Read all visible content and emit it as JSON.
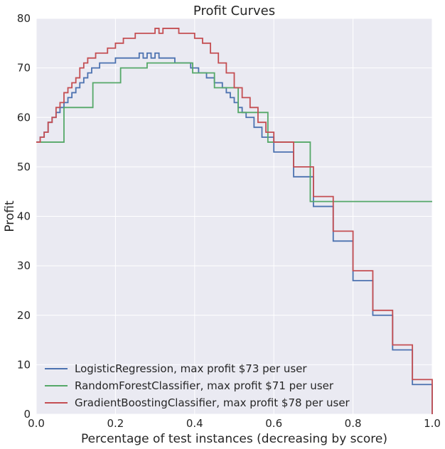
{
  "chart_data": {
    "type": "line",
    "title": "Profit Curves",
    "xlabel": "Percentage of test instances (decreasing by score)",
    "ylabel": "Profit",
    "xlim": [
      0,
      1
    ],
    "ylim": [
      0,
      80
    ],
    "xticks": [
      0.0,
      0.2,
      0.4,
      0.6,
      0.8,
      1.0
    ],
    "xtick_labels": [
      "0.0",
      "0.2",
      "0.4",
      "0.6",
      "0.8",
      "1.0"
    ],
    "yticks": [
      0,
      10,
      20,
      30,
      40,
      50,
      60,
      70,
      80
    ],
    "ytick_labels": [
      "0",
      "10",
      "20",
      "30",
      "40",
      "50",
      "60",
      "70",
      "80"
    ],
    "grid": true,
    "legend_position": "lower-left",
    "background_color": "#EAEAF2",
    "series": [
      {
        "name": "LogisticRegression, max profit $73 per user",
        "color": "#4C72B0",
        "step": true,
        "points": [
          [
            0.0,
            55
          ],
          [
            0.01,
            56
          ],
          [
            0.02,
            57
          ],
          [
            0.03,
            59
          ],
          [
            0.04,
            60
          ],
          [
            0.05,
            61
          ],
          [
            0.06,
            62
          ],
          [
            0.07,
            63
          ],
          [
            0.08,
            64
          ],
          [
            0.09,
            65
          ],
          [
            0.1,
            66
          ],
          [
            0.11,
            67
          ],
          [
            0.12,
            68
          ],
          [
            0.13,
            69
          ],
          [
            0.14,
            70
          ],
          [
            0.15,
            70
          ],
          [
            0.16,
            71
          ],
          [
            0.18,
            71
          ],
          [
            0.2,
            72
          ],
          [
            0.25,
            72
          ],
          [
            0.26,
            73
          ],
          [
            0.27,
            72
          ],
          [
            0.28,
            73
          ],
          [
            0.29,
            72
          ],
          [
            0.3,
            73
          ],
          [
            0.31,
            72
          ],
          [
            0.34,
            72
          ],
          [
            0.35,
            71
          ],
          [
            0.38,
            71
          ],
          [
            0.39,
            70
          ],
          [
            0.41,
            69
          ],
          [
            0.43,
            68
          ],
          [
            0.45,
            67
          ],
          [
            0.47,
            66
          ],
          [
            0.48,
            65
          ],
          [
            0.49,
            64
          ],
          [
            0.5,
            63
          ],
          [
            0.51,
            62
          ],
          [
            0.52,
            61
          ],
          [
            0.53,
            60
          ],
          [
            0.55,
            58
          ],
          [
            0.57,
            56
          ],
          [
            0.6,
            53
          ],
          [
            0.65,
            48
          ],
          [
            0.7,
            42
          ],
          [
            0.75,
            35
          ],
          [
            0.8,
            27
          ],
          [
            0.85,
            20
          ],
          [
            0.9,
            13
          ],
          [
            0.95,
            6
          ],
          [
            1.0,
            0
          ]
        ]
      },
      {
        "name": "RandomForestClassifier, max profit $71 per user",
        "color": "#55A868",
        "step": true,
        "points": [
          [
            0.0,
            55
          ],
          [
            0.07,
            55
          ],
          [
            0.07,
            62
          ],
          [
            0.143,
            62
          ],
          [
            0.143,
            67
          ],
          [
            0.213,
            67
          ],
          [
            0.213,
            70
          ],
          [
            0.28,
            70
          ],
          [
            0.28,
            71
          ],
          [
            0.395,
            71
          ],
          [
            0.395,
            69
          ],
          [
            0.45,
            69
          ],
          [
            0.45,
            66
          ],
          [
            0.51,
            66
          ],
          [
            0.51,
            61
          ],
          [
            0.585,
            61
          ],
          [
            0.585,
            55
          ],
          [
            0.692,
            55
          ],
          [
            0.692,
            43
          ],
          [
            1.0,
            43
          ]
        ]
      },
      {
        "name": "GradientBoostingClassifier, max profit $78 per user",
        "color": "#C44E52",
        "step": true,
        "points": [
          [
            0.0,
            55
          ],
          [
            0.01,
            56
          ],
          [
            0.02,
            57
          ],
          [
            0.03,
            59
          ],
          [
            0.04,
            60
          ],
          [
            0.05,
            62
          ],
          [
            0.06,
            63
          ],
          [
            0.07,
            65
          ],
          [
            0.08,
            66
          ],
          [
            0.09,
            67
          ],
          [
            0.1,
            68
          ],
          [
            0.11,
            70
          ],
          [
            0.12,
            71
          ],
          [
            0.13,
            72
          ],
          [
            0.15,
            73
          ],
          [
            0.18,
            74
          ],
          [
            0.2,
            75
          ],
          [
            0.22,
            76
          ],
          [
            0.25,
            77
          ],
          [
            0.29,
            77
          ],
          [
            0.3,
            78
          ],
          [
            0.31,
            77
          ],
          [
            0.32,
            78
          ],
          [
            0.35,
            78
          ],
          [
            0.36,
            77
          ],
          [
            0.38,
            77
          ],
          [
            0.4,
            76
          ],
          [
            0.42,
            75
          ],
          [
            0.44,
            73
          ],
          [
            0.46,
            71
          ],
          [
            0.48,
            69
          ],
          [
            0.5,
            66
          ],
          [
            0.52,
            64
          ],
          [
            0.54,
            62
          ],
          [
            0.56,
            59
          ],
          [
            0.58,
            57
          ],
          [
            0.6,
            55
          ],
          [
            0.65,
            50
          ],
          [
            0.7,
            44
          ],
          [
            0.75,
            37
          ],
          [
            0.8,
            29
          ],
          [
            0.85,
            21
          ],
          [
            0.9,
            14
          ],
          [
            0.95,
            7
          ],
          [
            1.0,
            0
          ]
        ]
      }
    ]
  }
}
